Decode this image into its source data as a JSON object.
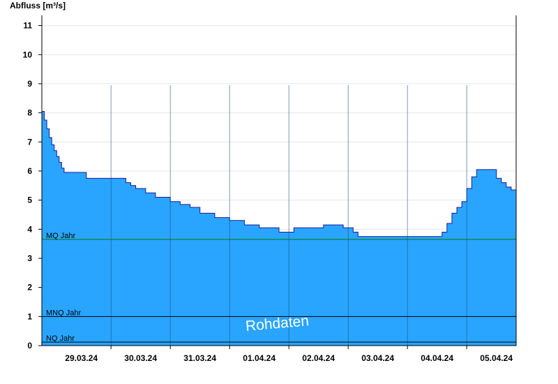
{
  "chart_data": {
    "type": "area",
    "ylabel": "Abfluss [m³/s]",
    "ylim": [
      0,
      11.35
    ],
    "yticks": [
      0,
      1,
      2,
      3,
      4,
      5,
      6,
      7,
      8,
      9,
      10,
      11
    ],
    "xlim": [
      "2024-03-28T20:00",
      "2024-04-05T20:00"
    ],
    "x_tick_labels": [
      "29.03.24",
      "30.03.24",
      "31.03.24",
      "01.04.24",
      "02.04.24",
      "03.04.24",
      "04.04.24",
      "05.04.24"
    ],
    "x_ticks": [
      "2024-03-29T12:00",
      "2024-03-30T12:00",
      "2024-03-31T12:00",
      "2024-04-01T12:00",
      "2024-04-02T12:00",
      "2024-04-03T12:00",
      "2024-04-04T12:00",
      "2024-04-05T12:00"
    ],
    "day_boundaries": [
      "2024-03-30",
      "2024-03-31",
      "2024-04-01",
      "2024-04-02",
      "2024-04-03",
      "2024-04-04",
      "2024-04-05"
    ],
    "grid": "horizontal",
    "fill_color": "#29a5ff",
    "line_color": "#1a1a9a",
    "series": [
      {
        "x": [
          "2024-03-28T20:00",
          "2024-03-28T21:00",
          "2024-03-28T22:00",
          "2024-03-28T23:00",
          "2024-03-29T00:00",
          "2024-03-29T01:00",
          "2024-03-29T02:00",
          "2024-03-29T03:00",
          "2024-03-29T04:00",
          "2024-03-29T05:00",
          "2024-03-29T06:00",
          "2024-03-29T07:00",
          "2024-03-29T08:00",
          "2024-03-29T09:00",
          "2024-03-29T10:00",
          "2024-03-29T12:00",
          "2024-03-29T14:00",
          "2024-03-30T00:00",
          "2024-03-30T06:00",
          "2024-03-30T08:00",
          "2024-03-30T10:00",
          "2024-03-30T14:00",
          "2024-03-30T18:00",
          "2024-03-31T00:00",
          "2024-03-31T04:00",
          "2024-03-31T08:00",
          "2024-03-31T12:00",
          "2024-03-31T18:00",
          "2024-04-01T00:00",
          "2024-04-01T06:00",
          "2024-04-01T12:00",
          "2024-04-01T20:00",
          "2024-04-02T02:00",
          "2024-04-02T14:00",
          "2024-04-02T22:00",
          "2024-04-03T02:00",
          "2024-04-03T04:00",
          "2024-04-04T02:00",
          "2024-04-04T14:00",
          "2024-04-04T16:00",
          "2024-04-04T18:00",
          "2024-04-04T20:00",
          "2024-04-04T22:00",
          "2024-04-05T00:00",
          "2024-04-05T02:00",
          "2024-04-05T04:00",
          "2024-04-05T06:00",
          "2024-04-05T08:00",
          "2024-04-05T12:00",
          "2024-04-05T14:00",
          "2024-04-05T16:00",
          "2024-04-05T18:00",
          "2024-04-05T20:00"
        ],
        "y": [
          8.05,
          7.75,
          7.45,
          7.15,
          6.9,
          6.7,
          6.5,
          6.3,
          6.1,
          5.95,
          5.95,
          5.95,
          5.95,
          5.95,
          5.95,
          5.95,
          5.75,
          5.75,
          5.6,
          5.5,
          5.4,
          5.25,
          5.1,
          4.95,
          4.85,
          4.75,
          4.55,
          4.4,
          4.3,
          4.15,
          4.05,
          3.9,
          4.05,
          4.15,
          4.05,
          3.9,
          3.75,
          3.75,
          3.9,
          4.2,
          4.55,
          4.75,
          4.95,
          5.4,
          5.8,
          6.05,
          6.05,
          6.05,
          5.75,
          5.6,
          5.45,
          5.35,
          5.25
        ]
      }
    ],
    "reference_lines": [
      {
        "label": "MQ Jahr",
        "value": 3.65,
        "color": "#007a00"
      },
      {
        "label": "MNQ Jahr",
        "value": 1.0,
        "color": "#000000"
      },
      {
        "label": "NQ Jahr",
        "value": 0.12,
        "color": "#000000"
      }
    ],
    "watermark": "Rohdaten"
  }
}
